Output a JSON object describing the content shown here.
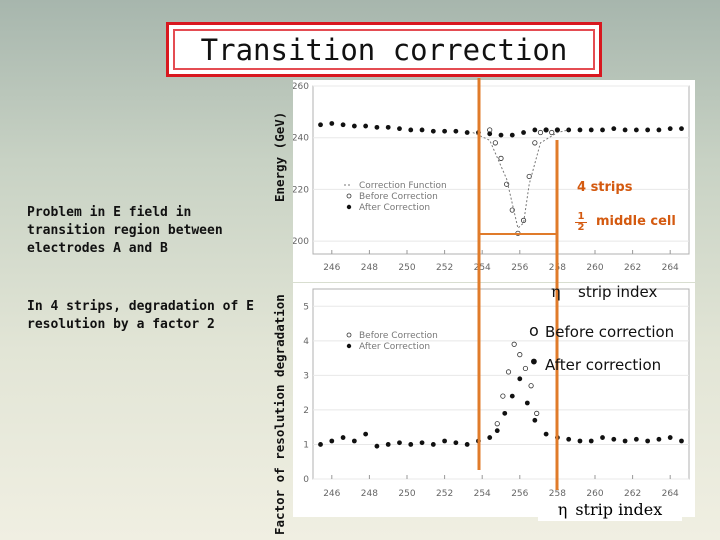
{
  "slide": {
    "title": "Transition correction",
    "left_text_1": "Problem in E field in transition region between electrodes A and B",
    "left_text_2": "In 4 strips, degradation of E resolution by a factor 2",
    "ylabel_top": "Energy (GeV)",
    "ylabel_bottom": "Factor of resolution degradation"
  },
  "annotations": {
    "four_strips": "4 strips",
    "half_num": "1",
    "half_den": "2",
    "middle_cell": "middle cell",
    "eta": "η",
    "strip_index": "strip index",
    "open_marker": "o",
    "before_correction": "Before correction",
    "filled_marker": "•",
    "after_correction": "After correction"
  },
  "colors": {
    "title_border": "#d8181f",
    "marker_line": "#e07b2a",
    "four_strips_text": "#d45a10"
  },
  "chart_data": [
    {
      "type": "scatter",
      "xlim": [
        245,
        265
      ],
      "ylim": [
        195,
        260
      ],
      "x_ticks": [
        "246",
        "248",
        "250",
        "252",
        "254",
        "256",
        "258",
        "260",
        "262",
        "264"
      ],
      "y_ticks": [
        "200",
        "220",
        "240",
        "260"
      ],
      "legend": [
        "Correction Function",
        "Before Correction",
        "After Correction"
      ],
      "legend_position": "center-left",
      "series": [
        {
          "name": "Before Correction",
          "marker": "open",
          "x": [
            254.4,
            254.7,
            255.0,
            255.3,
            255.6,
            255.9,
            256.2,
            256.5,
            256.8,
            257.1,
            257.4,
            257.7,
            258.0
          ],
          "y": [
            243,
            238,
            232,
            222,
            212,
            203,
            208,
            225,
            238,
            242,
            243,
            242,
            243
          ]
        },
        {
          "name": "After Correction",
          "marker": "filled",
          "x": [
            245.4,
            246.0,
            246.6,
            247.2,
            247.8,
            248.4,
            249.0,
            249.6,
            250.2,
            250.8,
            251.4,
            252.0,
            252.6,
            253.2,
            253.8,
            254.4,
            255.0,
            255.6,
            256.2,
            256.8,
            257.4,
            258.0,
            258.6,
            259.2,
            259.8,
            260.4,
            261.0,
            261.6,
            262.2,
            262.8,
            263.4,
            264.0,
            264.6
          ],
          "y": [
            245,
            245.5,
            245,
            244.5,
            244.5,
            244,
            244,
            243.5,
            243,
            243,
            242.5,
            242.5,
            242.5,
            242,
            242,
            241.5,
            241,
            241,
            242,
            243,
            243,
            243,
            243,
            243,
            243,
            243,
            243.5,
            243,
            243,
            243,
            243,
            243.5,
            243.5
          ]
        },
        {
          "name": "Correction Function",
          "marker": "dashed-line",
          "x": [
            253.5,
            254.4,
            255.3,
            255.9,
            256.2,
            256.5,
            257.1,
            258.0,
            258.6
          ],
          "y": [
            242,
            239,
            224,
            205,
            207,
            222,
            238,
            242,
            243
          ]
        }
      ]
    },
    {
      "type": "scatter",
      "xlim": [
        245,
        265
      ],
      "ylim": [
        0,
        5.5
      ],
      "x_ticks": [
        "246",
        "248",
        "250",
        "252",
        "254",
        "256",
        "258",
        "260",
        "262",
        "264"
      ],
      "y_ticks": [
        "0",
        "1",
        "2",
        "3",
        "4",
        "5"
      ],
      "legend": [
        "Before Correction",
        "After Correction"
      ],
      "legend_position": "top-left",
      "series": [
        {
          "name": "Before Correction",
          "marker": "open",
          "x": [
            254.8,
            255.1,
            255.4,
            255.7,
            256.0,
            256.3,
            256.6,
            256.9
          ],
          "y": [
            1.6,
            2.4,
            3.1,
            3.9,
            3.6,
            3.2,
            2.7,
            1.9
          ]
        },
        {
          "name": "After Correction",
          "marker": "filled",
          "x": [
            245.4,
            246.0,
            246.6,
            247.2,
            247.8,
            248.4,
            249.0,
            249.6,
            250.2,
            250.8,
            251.4,
            252.0,
            252.6,
            253.2,
            253.8,
            254.4,
            254.8,
            255.2,
            255.6,
            256.0,
            256.4,
            256.8,
            257.4,
            258.0,
            258.6,
            259.2,
            259.8,
            260.4,
            261.0,
            261.6,
            262.2,
            262.8,
            263.4,
            264.0,
            264.6
          ],
          "y": [
            1.0,
            1.1,
            1.2,
            1.1,
            1.3,
            0.95,
            1.0,
            1.05,
            1.0,
            1.05,
            1.0,
            1.1,
            1.05,
            1.0,
            1.1,
            1.2,
            1.4,
            1.9,
            2.4,
            2.9,
            2.2,
            1.7,
            1.3,
            1.2,
            1.15,
            1.1,
            1.1,
            1.2,
            1.15,
            1.1,
            1.15,
            1.1,
            1.15,
            1.2,
            1.1
          ]
        }
      ]
    }
  ]
}
